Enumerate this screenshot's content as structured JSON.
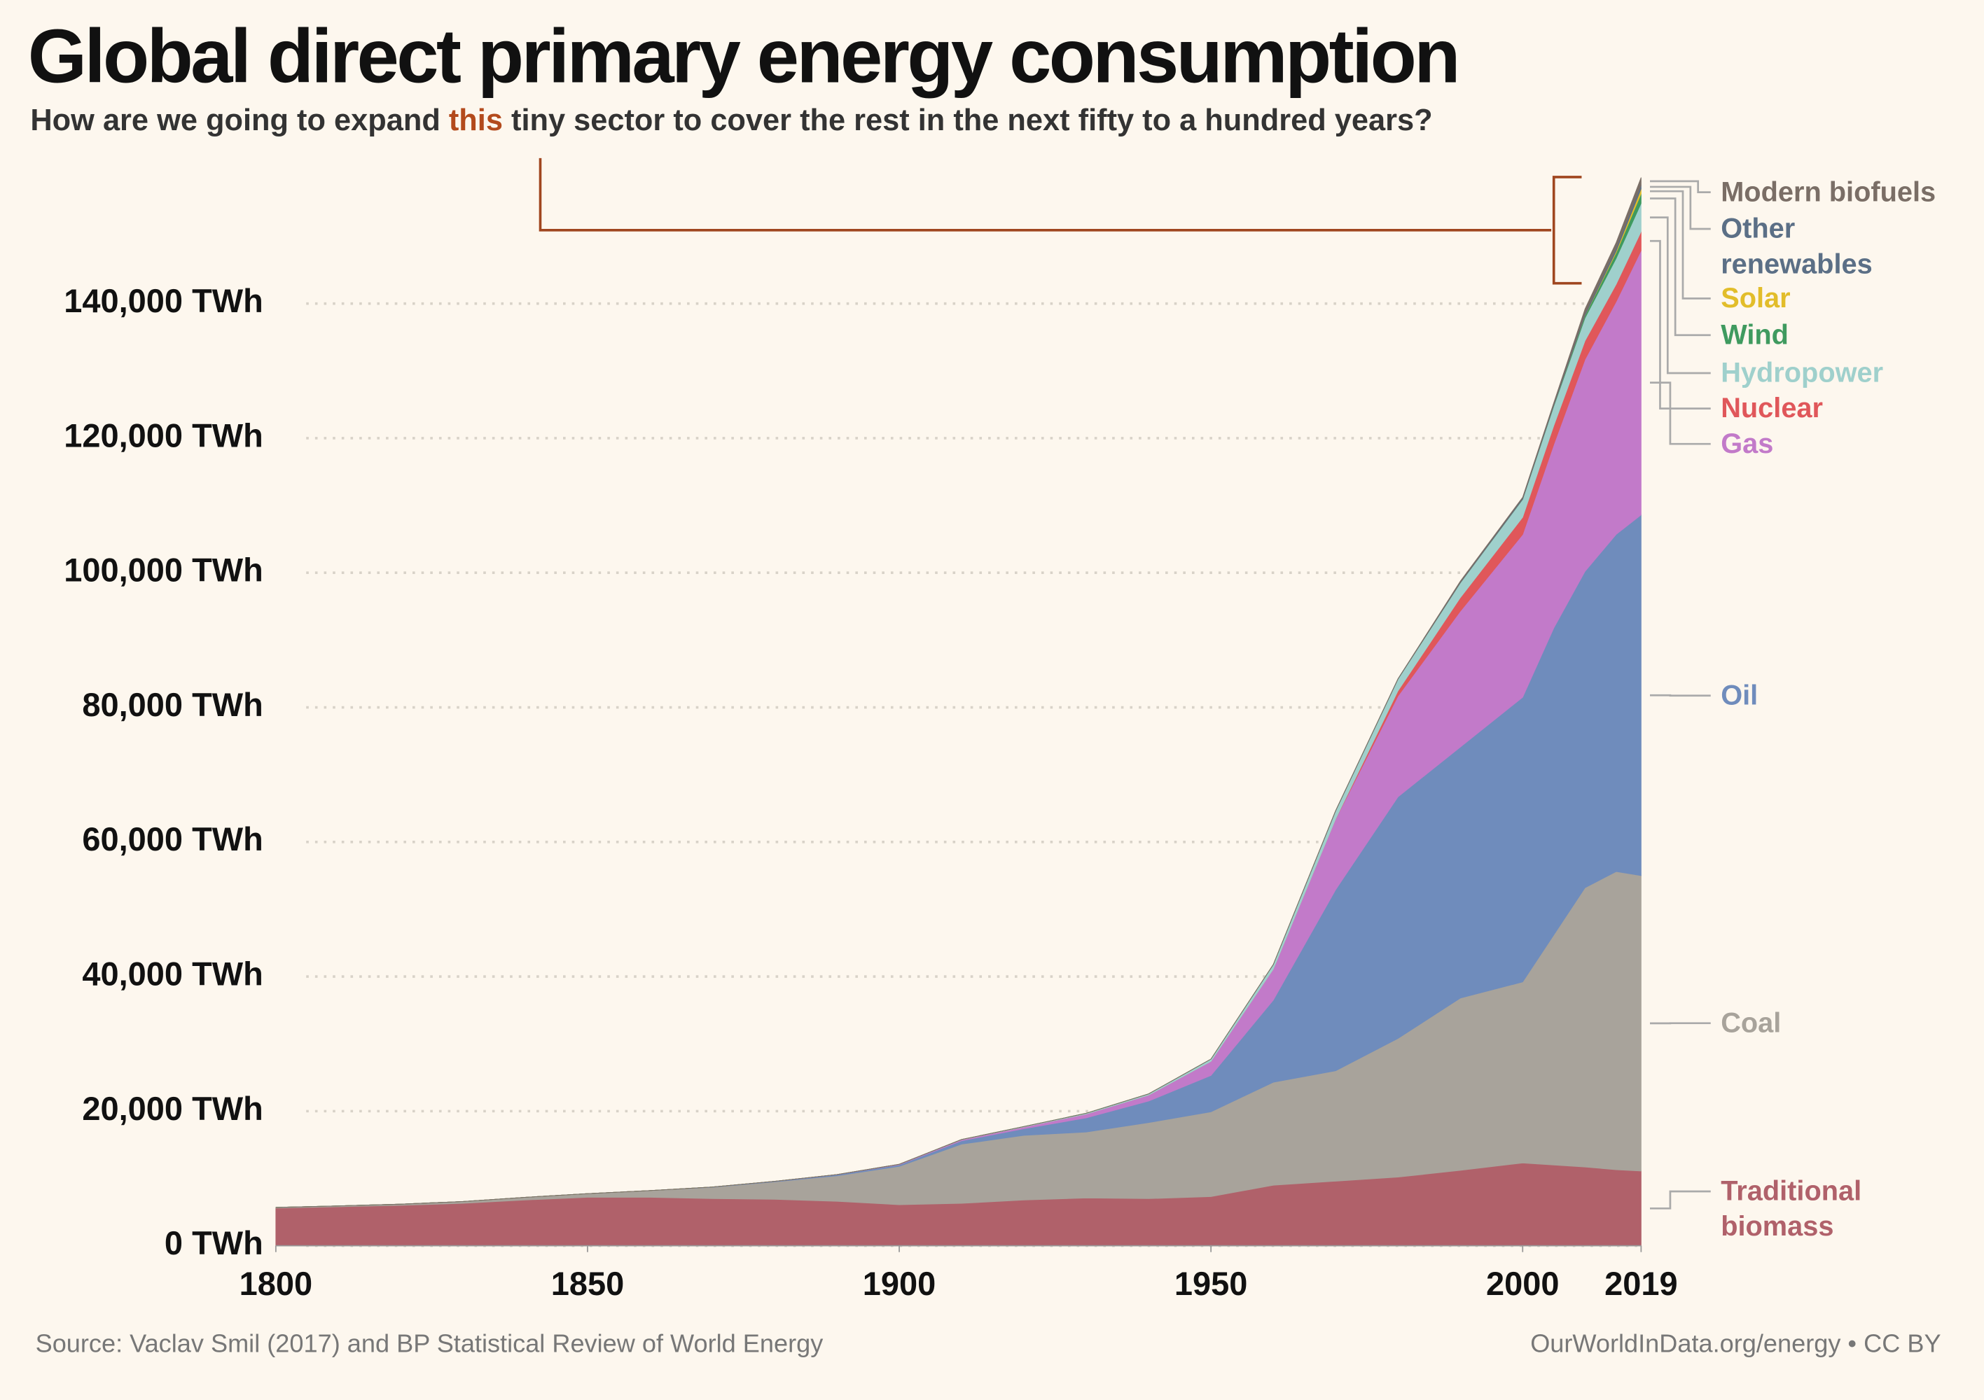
{
  "chart_data": {
    "type": "stacked_area",
    "title": "Global direct primary energy consumption",
    "subtitle": [
      "How are we going to expand ",
      "this",
      " tiny sector to cover the rest in the next fifty to a hundred years?"
    ],
    "source": "Source: Vaclav Smil (2017) and BP Statistical Review of World Energy",
    "credit": "OurWorldInData.org/energy • CC BY",
    "x": [
      1800,
      1810,
      1820,
      1830,
      1840,
      1850,
      1860,
      1870,
      1880,
      1890,
      1900,
      1910,
      1920,
      1930,
      1940,
      1950,
      1960,
      1970,
      1980,
      1990,
      2000,
      2005,
      2010,
      2015,
      2019
    ],
    "xlim": [
      1800,
      2019
    ],
    "xticks": [
      1800,
      1850,
      1900,
      1950,
      2000,
      2019
    ],
    "ylim": [
      0,
      160000
    ],
    "yticks": [
      {
        "value": 0,
        "label": "0 TWh"
      },
      {
        "value": 20000,
        "label": "20,000 TWh"
      },
      {
        "value": 40000,
        "label": "40,000 TWh"
      },
      {
        "value": 60000,
        "label": "60,000 TWh"
      },
      {
        "value": 80000,
        "label": "80,000 TWh"
      },
      {
        "value": 100000,
        "label": "100,000 TWh"
      },
      {
        "value": 120000,
        "label": "120,000 TWh"
      },
      {
        "value": 140000,
        "label": "140,000 TWh"
      }
    ],
    "grid": true,
    "series": [
      {
        "name": "Traditional biomass",
        "color": "#b0616a",
        "values": [
          5600,
          5800,
          6000,
          6300,
          6800,
          7200,
          7200,
          7000,
          6900,
          6600,
          6100,
          6300,
          6800,
          7100,
          7000,
          7300,
          9000,
          9600,
          10200,
          11200,
          12300,
          12000,
          11700,
          11300,
          11100
        ]
      },
      {
        "name": "Coal",
        "color": "#a8a39b",
        "values": [
          100,
          130,
          180,
          280,
          400,
          550,
          1000,
          1700,
          2600,
          3800,
          5700,
          8800,
          9600,
          9800,
          11300,
          12600,
          15300,
          16400,
          20600,
          25600,
          26900,
          34200,
          41500,
          44300,
          43900
        ]
      },
      {
        "name": "Oil",
        "color": "#6f8cbc",
        "values": [
          0,
          0,
          0,
          0,
          0,
          0,
          5,
          30,
          70,
          150,
          230,
          500,
          1000,
          2100,
          3200,
          5400,
          12200,
          26900,
          35900,
          37300,
          42300,
          45600,
          47000,
          50100,
          53600
        ]
      },
      {
        "name": "Gas",
        "color": "#c27ac9",
        "values": [
          0,
          0,
          0,
          0,
          0,
          0,
          0,
          0,
          5,
          30,
          60,
          150,
          240,
          570,
          880,
          2100,
          4600,
          10500,
          15000,
          20200,
          24200,
          27300,
          31500,
          34600,
          39300
        ]
      },
      {
        "name": "Nuclear",
        "color": "#e0575a",
        "values": [
          0,
          0,
          0,
          0,
          0,
          0,
          0,
          0,
          0,
          0,
          0,
          0,
          0,
          0,
          0,
          0,
          0,
          20,
          750,
          2000,
          2550,
          2770,
          2760,
          2570,
          2800
        ]
      },
      {
        "name": "Hydropower",
        "color": "#9fd0cc",
        "values": [
          0,
          0,
          0,
          0,
          0,
          0,
          0,
          0,
          0,
          0,
          20,
          40,
          80,
          120,
          190,
          340,
          690,
          1200,
          1750,
          2200,
          2650,
          2900,
          3400,
          3850,
          4200
        ]
      },
      {
        "name": "Wind",
        "color": "#3f9a5f",
        "values": [
          0,
          0,
          0,
          0,
          0,
          0,
          0,
          0,
          0,
          0,
          0,
          0,
          0,
          0,
          0,
          0,
          0,
          0,
          0,
          4,
          31,
          104,
          346,
          831,
          1430
        ]
      },
      {
        "name": "Solar",
        "color": "#e2bd2a",
        "values": [
          0,
          0,
          0,
          0,
          0,
          0,
          0,
          0,
          0,
          0,
          0,
          0,
          0,
          0,
          0,
          0,
          0,
          0,
          0,
          0,
          0,
          0,
          34,
          250,
          720
        ]
      },
      {
        "name": "Other renewables",
        "color": "#5b6f86",
        "values": [
          0,
          0,
          0,
          0,
          0,
          0,
          0,
          0,
          0,
          0,
          0,
          0,
          0,
          0,
          0,
          0,
          0,
          30,
          50,
          120,
          180,
          210,
          320,
          440,
          580
        ]
      },
      {
        "name": "Modern biofuels",
        "color": "#7a6e66",
        "values": [
          0,
          0,
          0,
          0,
          0,
          0,
          0,
          0,
          0,
          0,
          0,
          0,
          0,
          0,
          0,
          0,
          0,
          0,
          0,
          120,
          110,
          200,
          640,
          830,
          1100
        ]
      }
    ]
  }
}
